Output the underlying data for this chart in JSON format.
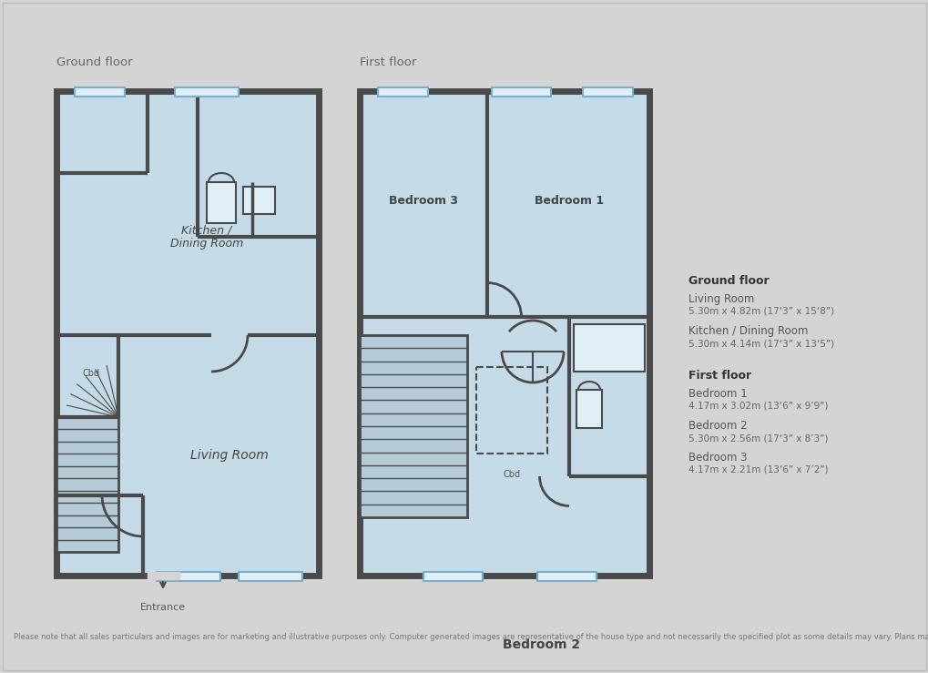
{
  "bg_color": "#d4d4d4",
  "floor_fill": "#c5dce8",
  "wall_color": "#4a4a4a",
  "window_fill": "#e0eef5",
  "window_stroke": "#7aafcc",
  "ground_floor_label": "Ground floor",
  "first_floor_label": "First floor",
  "entrance_label": "Entrance",
  "cbd_label": "Cbd",
  "legend_title_ground": "Ground floor",
  "legend_items_ground": [
    [
      "Living Room",
      "5.30m x 4.82m (17‘3” x 15‘8”)"
    ],
    [
      "Kitchen / Dining Room",
      "5.30m x 4.14m (17‘3” x 13‘5”)"
    ]
  ],
  "legend_title_first": "First floor",
  "legend_items_first": [
    [
      "Bedroom 1",
      "4.17m x 3.02m (13‘6” x 9’9”)"
    ],
    [
      "Bedroom 2",
      "5.30m x 2.56m (17‘3” x 8’3”)"
    ],
    [
      "Bedroom 3",
      "4.17m x 2.21m (13‘6” x 7’2”)"
    ]
  ],
  "disclaimer": "Please note that all sales particulars and images are for marketing and illustrative purposes only. Computer generated images are representative of the house type and not necessarily the specified plot as some details may vary. Plans may contain elements which are not present upon the final completion of the property. All room dimensions are approximate and are for general guidance only."
}
